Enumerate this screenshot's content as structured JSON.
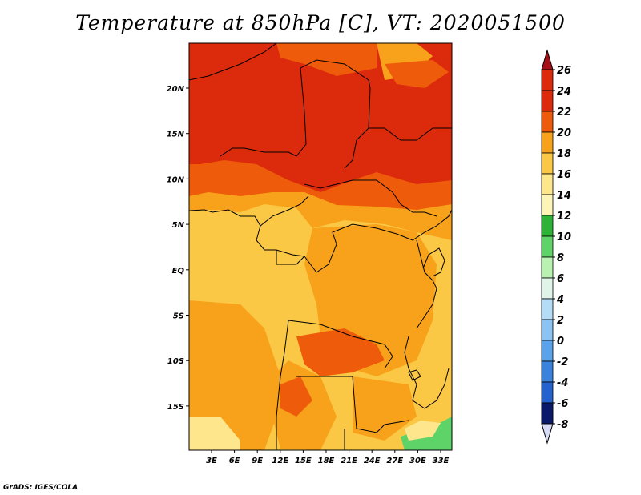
{
  "title": "Temperature at 850hPa [C], VT: 2020051500",
  "credit": "GrADS: IGES/COLA",
  "map": {
    "lat_range": [
      -19,
      24
    ],
    "lon_range": [
      0,
      35
    ],
    "lat_ticks": [
      "20N",
      "15N",
      "10N",
      "5N",
      "EQ",
      "5S",
      "10S",
      "15S"
    ],
    "lon_ticks": [
      "3E",
      "6E",
      "9E",
      "12E",
      "15E",
      "18E",
      "21E",
      "24E",
      "27E",
      "30E",
      "33E"
    ]
  },
  "colorbar": {
    "labels": [
      "26",
      "24",
      "22",
      "20",
      "18",
      "16",
      "14",
      "12",
      "10",
      "8",
      "6",
      "4",
      "2",
      "0",
      "-2",
      "-4",
      "-6",
      "-8"
    ],
    "colors": {
      "26": "#a50f15",
      "24": "#dc2a0d",
      "22": "#ee5b0a",
      "20": "#f7a21a",
      "18": "#fbc845",
      "16": "#fde68c",
      "14": "#fdf5b8",
      "12": "#2eb339",
      "10": "#5ed367",
      "8": "#b9f2b0",
      "6": "#e0f5e8",
      "4": "#b5dcf7",
      "2": "#8cc3f2",
      "0": "#5aa3ea",
      "-2": "#3b82de",
      "-4": "#2561cf",
      "-6": "#1a45b5",
      "-8": "#0e2a93",
      "low": "#0a1a6b",
      "below": "#d8dcf7"
    }
  }
}
